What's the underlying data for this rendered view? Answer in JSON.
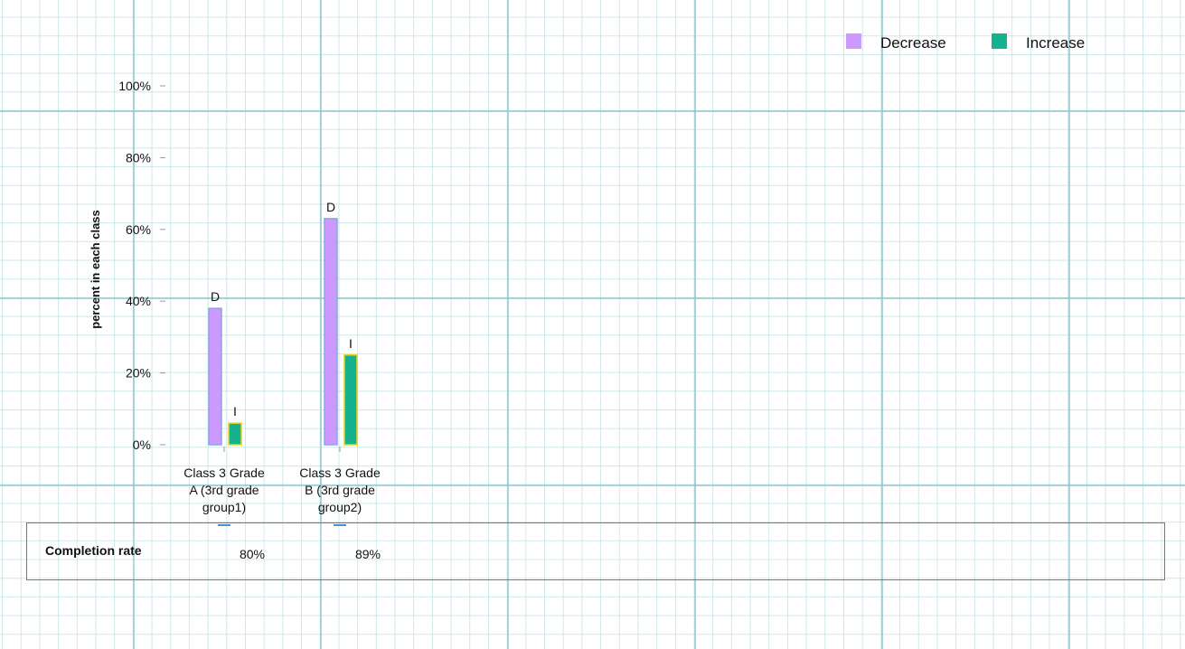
{
  "chart_data": {
    "type": "bar",
    "categories": [
      "Class 3 Grade A (3rd grade group1)",
      "Class 3 Grade B (3rd grade group2)"
    ],
    "series": [
      {
        "name": "Decrease",
        "values": [
          38,
          63
        ],
        "label": "D",
        "color": "#cc99ff",
        "stroke": "#8aa6e6"
      },
      {
        "name": "Increase",
        "values": [
          6,
          25
        ],
        "label": "I",
        "color": "#14b28e",
        "stroke": "#e6d21e"
      }
    ],
    "ylabel": "percent in each class",
    "xlabel": "",
    "ylim": [
      0,
      100
    ],
    "yticks": [
      "0%",
      "20%",
      "40%",
      "60%",
      "80%",
      "100%"
    ],
    "legend_position": "top-right",
    "grid": true
  },
  "table": {
    "row_label": "Completion rate",
    "values": [
      "80%",
      "89%"
    ]
  }
}
